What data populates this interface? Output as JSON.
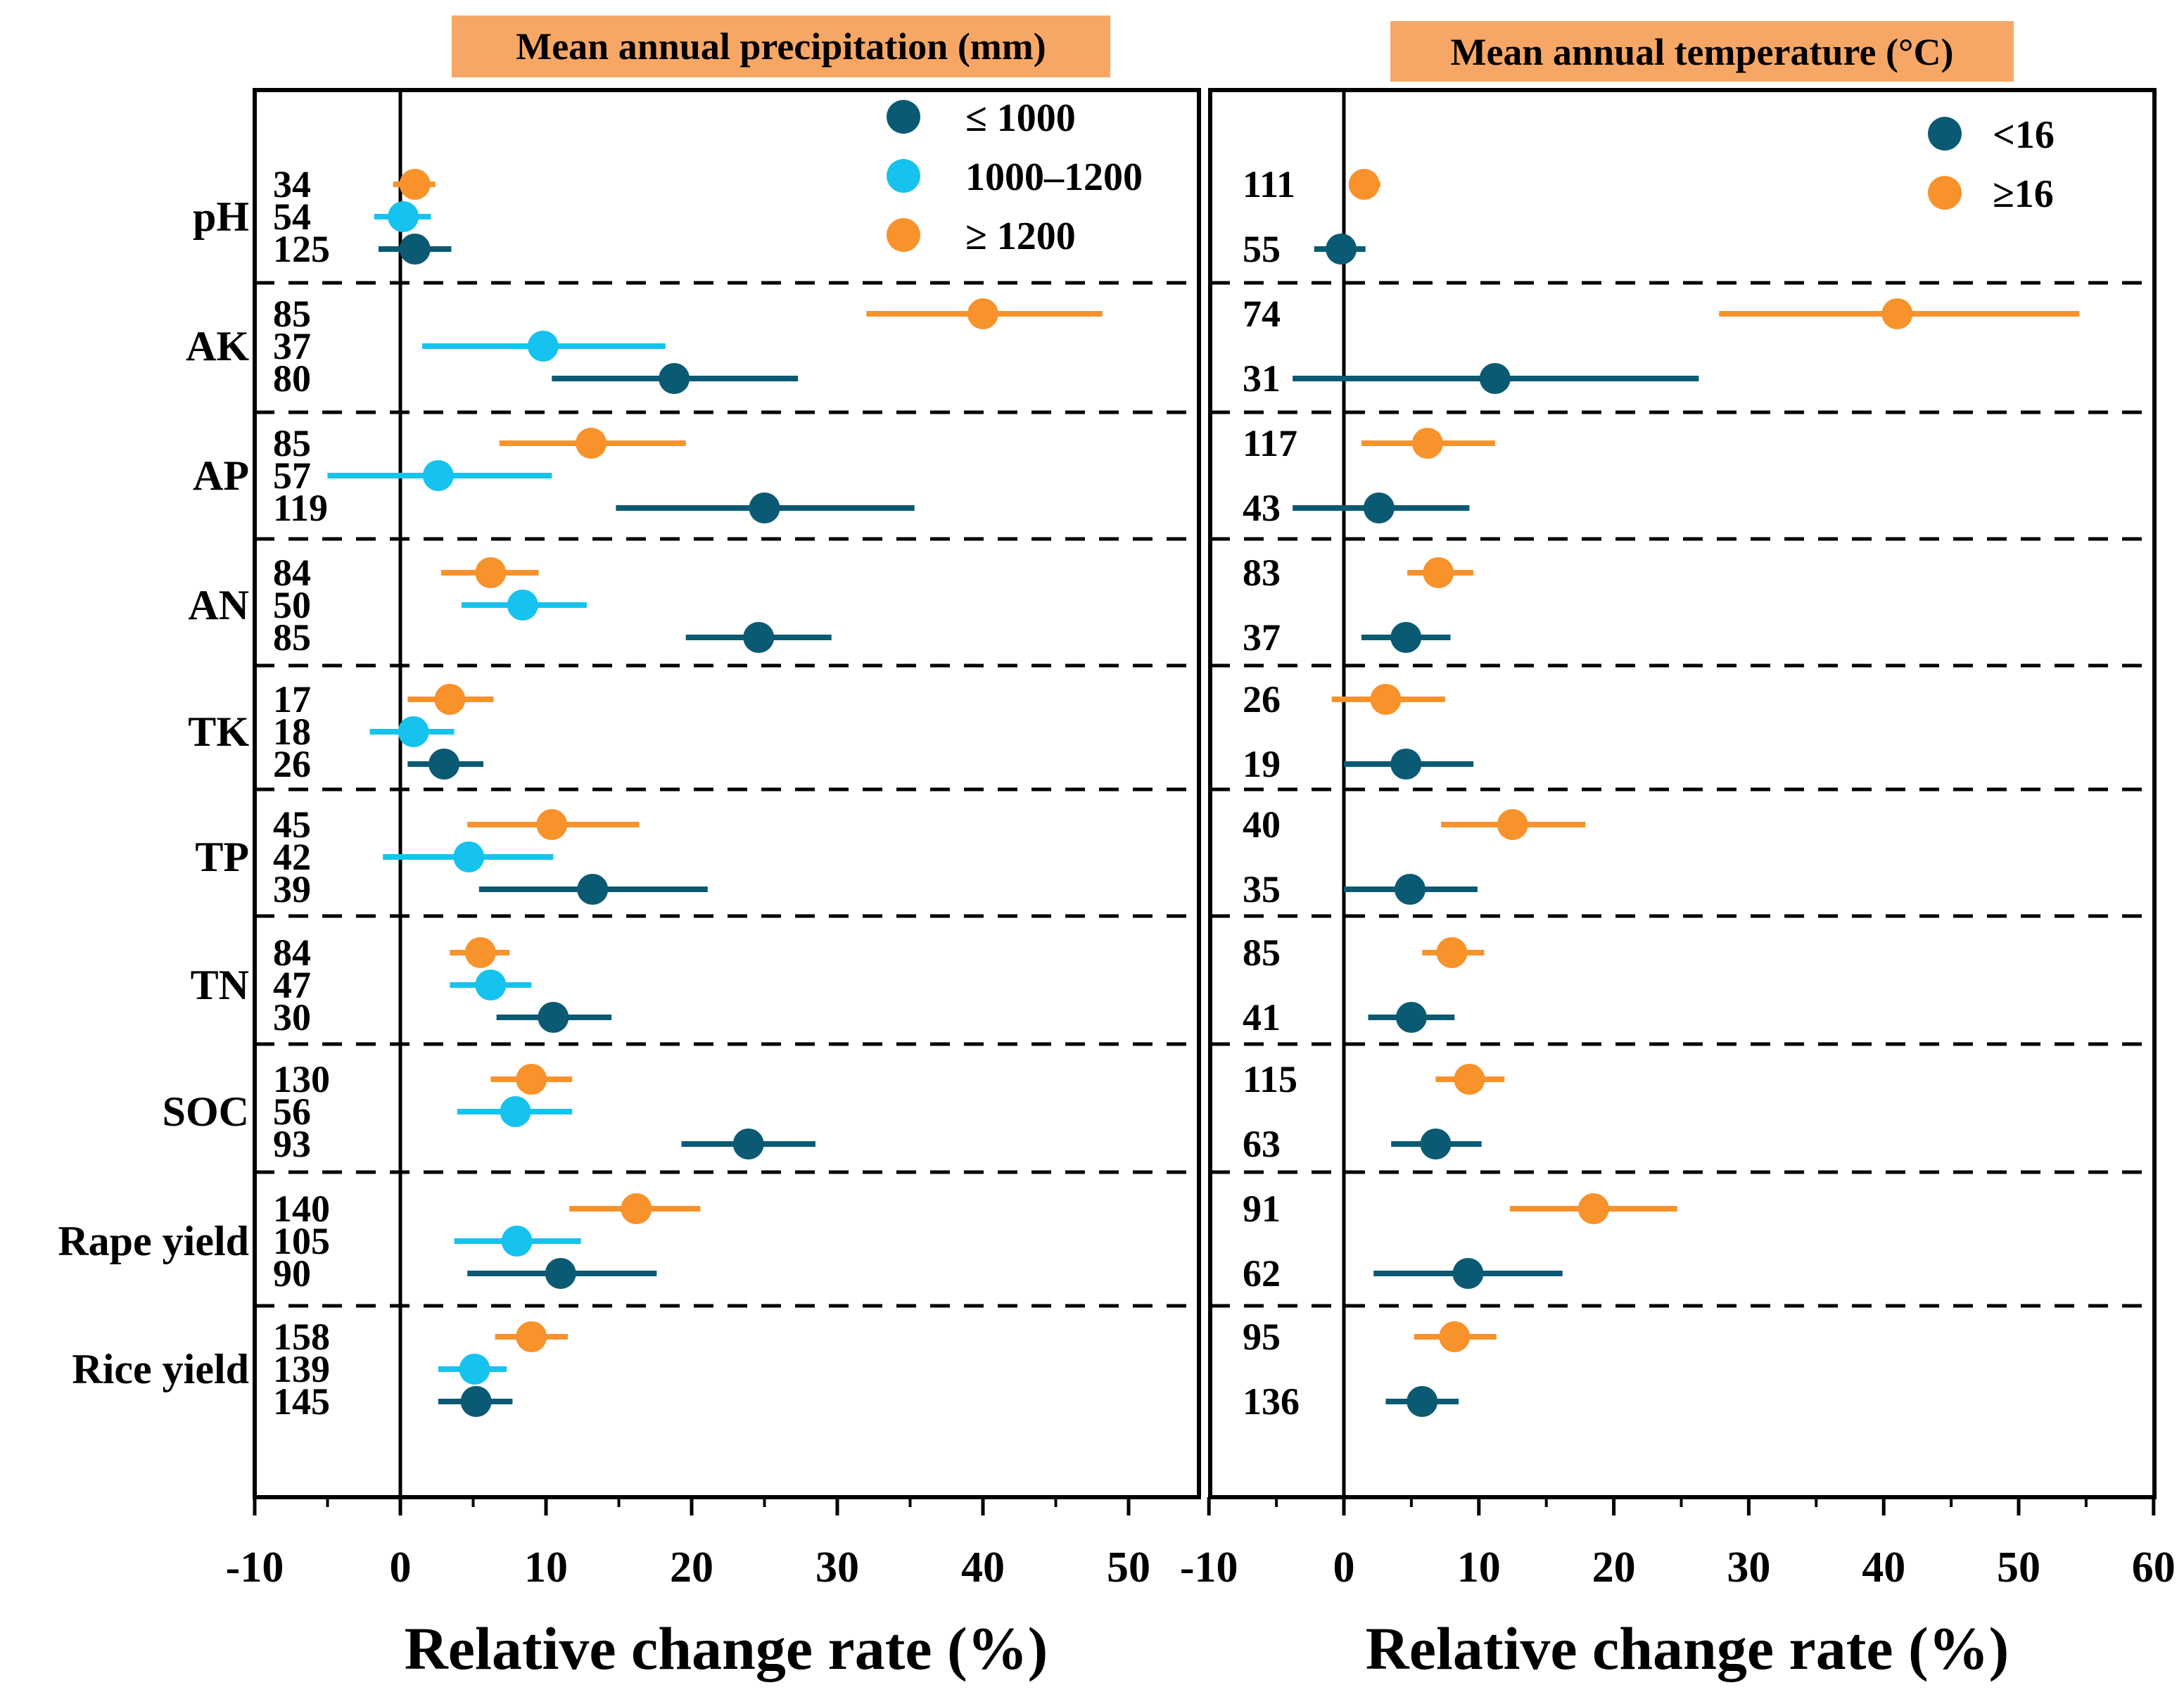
{
  "colors": {
    "c1": "#0b5a73",
    "c2": "#16c2ee",
    "c3": "#f8922b",
    "title_bg": "#f7a765",
    "axis": "#000000"
  },
  "categories": [
    "pH",
    "AK",
    "AP",
    "AN",
    "TK",
    "TP",
    "TN",
    "SOC",
    "Rape yield",
    "Rice yield"
  ],
  "chart_data": [
    {
      "type": "forest",
      "title": "Mean annual precipitation (mm)",
      "xlabel": "Relative change rate (%)",
      "xlim": [
        -10,
        55
      ],
      "xticks": [
        -10,
        0,
        10,
        20,
        30,
        40,
        50
      ],
      "tick_labels": [
        "-10",
        "0",
        "10",
        "20",
        "30",
        "40",
        "50"
      ],
      "legend_position": "top-right",
      "series": [
        {
          "name": "≤ 1000",
          "color": "#0b5a73",
          "n": [
            "125",
            "80",
            "119",
            "85",
            "26",
            "39",
            "30",
            "93",
            "90",
            "145"
          ],
          "mean": [
            1.0,
            18.8,
            25.0,
            24.6,
            3.0,
            13.2,
            10.5,
            23.9,
            11.0,
            5.2
          ],
          "ci_low": [
            -1.5,
            10.4,
            14.8,
            19.6,
            0.5,
            5.4,
            6.6,
            19.3,
            4.6,
            2.6
          ],
          "ci_high": [
            3.5,
            27.3,
            35.3,
            29.6,
            5.7,
            21.1,
            14.5,
            28.5,
            17.6,
            7.7
          ]
        },
        {
          "name": "1000–1200",
          "color": "#16c2ee",
          "n": [
            "54",
            "37",
            "57",
            "50",
            "18",
            "42",
            "47",
            "56",
            "105",
            "139"
          ],
          "mean": [
            0.2,
            9.8,
            2.6,
            8.4,
            0.9,
            4.7,
            6.2,
            7.9,
            8.0,
            5.1
          ],
          "ci_low": [
            -1.8,
            1.5,
            -5.0,
            4.2,
            -2.1,
            -1.2,
            3.4,
            3.9,
            3.7,
            2.6
          ],
          "ci_high": [
            2.1,
            18.2,
            10.4,
            12.8,
            3.7,
            10.5,
            9.0,
            11.8,
            12.4,
            7.3
          ]
        },
        {
          "name": "≥ 1200",
          "color": "#f8922b",
          "n": [
            "34",
            "85",
            "85",
            "84",
            "17",
            "45",
            "84",
            "130",
            "140",
            "158"
          ],
          "mean": [
            1.0,
            40.0,
            13.1,
            6.2,
            3.4,
            10.4,
            5.5,
            9.0,
            16.2,
            9.0
          ],
          "ci_low": [
            -0.5,
            32.0,
            6.8,
            2.8,
            0.5,
            4.6,
            3.4,
            6.2,
            11.6,
            6.5
          ],
          "ci_high": [
            2.4,
            48.2,
            19.6,
            9.5,
            6.4,
            16.4,
            7.5,
            11.8,
            20.6,
            11.5
          ]
        }
      ]
    },
    {
      "type": "forest",
      "title": "Mean annual temperature (°C)",
      "xlabel": "Relative change rate (%)",
      "xlim": [
        -10,
        60
      ],
      "xticks": [
        -10,
        0,
        10,
        20,
        30,
        40,
        50,
        60
      ],
      "tick_labels": [
        "-10",
        "0",
        "10",
        "20",
        "30",
        "40",
        "50",
        "60"
      ],
      "legend_position": "top-right",
      "series": [
        {
          "name": "<16",
          "color": "#0b5a73",
          "n": [
            "55",
            "31",
            "43",
            "37",
            "19",
            "35",
            "41",
            "63",
            "62",
            "136"
          ],
          "mean": [
            -0.2,
            11.2,
            2.6,
            4.6,
            4.6,
            4.9,
            5.0,
            6.8,
            9.2,
            5.8
          ],
          "ci_low": [
            -2.2,
            -3.8,
            -3.8,
            1.3,
            0.0,
            0.0,
            1.8,
            3.5,
            2.2,
            3.1
          ],
          "ci_high": [
            1.6,
            26.3,
            9.3,
            7.9,
            9.6,
            9.9,
            8.2,
            10.2,
            16.2,
            8.5
          ]
        },
        {
          "name": "≥16",
          "color": "#f8922b",
          "n": [
            "111",
            "74",
            "117",
            "83",
            "26",
            "40",
            "85",
            "115",
            "91",
            "95"
          ],
          "mean": [
            1.5,
            41.0,
            6.2,
            7.0,
            3.1,
            12.5,
            8.0,
            9.3,
            18.5,
            8.2
          ],
          "ci_low": [
            0.4,
            27.8,
            1.3,
            4.7,
            -0.9,
            7.2,
            5.8,
            6.8,
            12.3,
            5.2
          ],
          "ci_high": [
            2.7,
            54.5,
            11.2,
            9.6,
            7.5,
            17.9,
            10.4,
            11.9,
            24.7,
            11.3
          ]
        }
      ]
    }
  ]
}
